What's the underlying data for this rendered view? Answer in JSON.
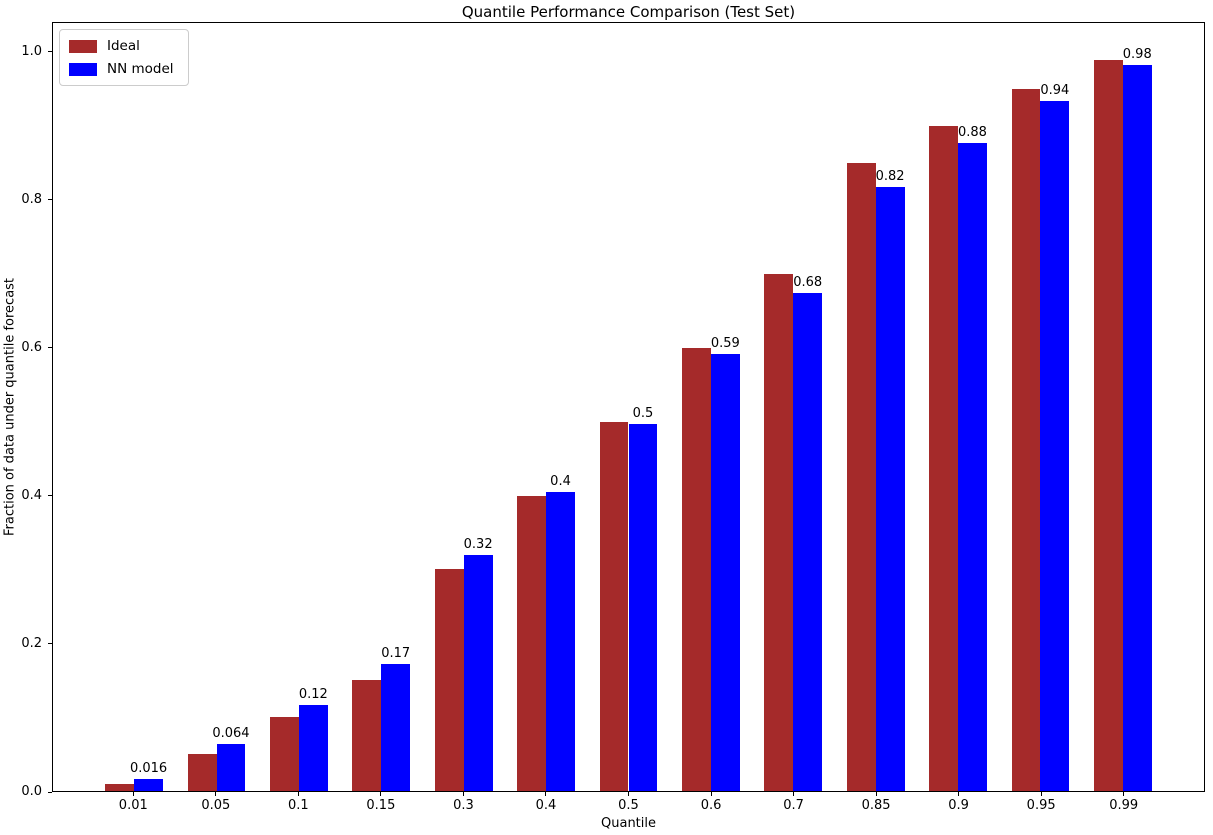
{
  "chart_data": {
    "type": "bar",
    "title": "Quantile Performance Comparison (Test Set)",
    "xlabel": "Quantile",
    "ylabel": "Fraction of data under quantile forecast",
    "categories": [
      "0.01",
      "0.05",
      "0.1",
      "0.15",
      "0.3",
      "0.4",
      "0.5",
      "0.6",
      "0.7",
      "0.85",
      "0.9",
      "0.95",
      "0.99"
    ],
    "series": [
      {
        "name": "Ideal",
        "color": "#a52a2a",
        "values": [
          0.01,
          0.05,
          0.1,
          0.15,
          0.3,
          0.4,
          0.5,
          0.6,
          0.7,
          0.85,
          0.9,
          0.95,
          0.99
        ]
      },
      {
        "name": "NN model",
        "color": "#0000ff",
        "values": [
          0.016,
          0.064,
          0.117,
          0.172,
          0.32,
          0.405,
          0.497,
          0.592,
          0.675,
          0.818,
          0.878,
          0.935,
          0.983
        ],
        "bar_labels": [
          "0.016",
          "0.064",
          "0.12",
          "0.17",
          "0.32",
          "0.4",
          "0.5",
          "0.59",
          "0.68",
          "0.82",
          "0.88",
          "0.94",
          "0.98"
        ]
      }
    ],
    "ytick_labels": [
      "0.0",
      "0.2",
      "0.4",
      "0.6",
      "0.8",
      "1.0"
    ],
    "yticks": [
      0.0,
      0.2,
      0.4,
      0.6,
      0.8,
      1.0
    ],
    "ylim": [
      0,
      1.04
    ],
    "bar_width": 0.35,
    "grid": false,
    "legend_position": "upper left"
  }
}
